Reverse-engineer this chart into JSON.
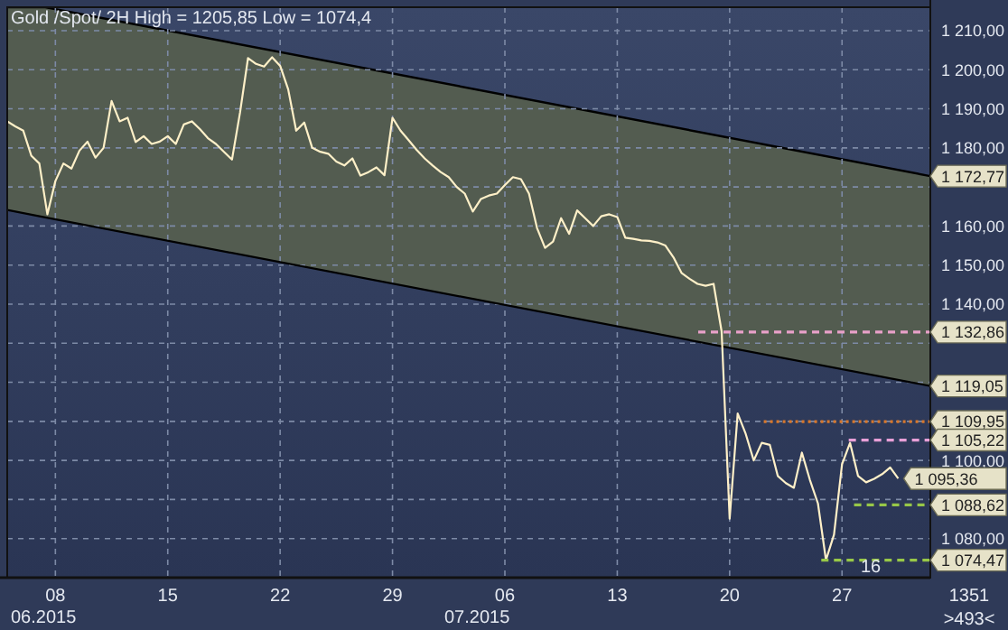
{
  "chart_data": {
    "type": "line",
    "title": "Gold /Spot/ 2H High = 1205,85 Low = 1074,4",
    "xlim": [
      "2015-06-05T00:00",
      "2015-08-01T12:00"
    ],
    "xticks": [
      {
        "value": "2015-06-08",
        "label": "08"
      },
      {
        "value": "2015-06-15",
        "label": "15"
      },
      {
        "value": "2015-06-22",
        "label": "22"
      },
      {
        "value": "2015-06-29",
        "label": "29"
      },
      {
        "value": "2015-07-06",
        "label": "06"
      },
      {
        "value": "2015-07-13",
        "label": "13"
      },
      {
        "value": "2015-07-20",
        "label": "20"
      },
      {
        "value": "2015-07-27",
        "label": "27"
      }
    ],
    "ylim": [
      1070,
      1216
    ],
    "yticks": [
      {
        "value": 1080,
        "label": "1 080,00"
      },
      {
        "value": 1090,
        "label": null
      },
      {
        "value": 1100,
        "label": "1 100,00"
      },
      {
        "value": 1110,
        "label": null
      },
      {
        "value": 1120,
        "label": null
      },
      {
        "value": 1130,
        "label": null
      },
      {
        "value": 1140,
        "label": "1 140,00"
      },
      {
        "value": 1150,
        "label": "1 150,00"
      },
      {
        "value": 1160,
        "label": "1 160,00"
      },
      {
        "value": 1170,
        "label": null
      },
      {
        "value": 1180,
        "label": "1 180,00"
      },
      {
        "value": 1190,
        "label": "1 190,00"
      },
      {
        "value": 1200,
        "label": "1 200,00"
      },
      {
        "value": 1210,
        "label": "1 210,00"
      }
    ],
    "grid": true,
    "series": [
      {
        "type": "area",
        "color": "#535c50",
        "x": [
          "2015-06-05T00:00",
          "2015-06-07T09:00",
          "2015-08-01T12:00"
        ],
        "values": [
          1216,
          1216,
          1172.77
        ],
        "value_labels": [
          null,
          null,
          "1 172,77"
        ]
      },
      {
        "type": "line",
        "color": "#000000",
        "x": [
          "2015-06-05T00:00",
          "2015-06-07T09:00",
          "2015-08-01T12:00"
        ],
        "values": [
          1164.1,
          1162.2,
          1119.05
        ],
        "value_labels": [
          null,
          null,
          "1 119,05"
        ]
      },
      {
        "color": "#fff0c8",
        "x": [
          "2015-06-05T00:00",
          "2015-06-05T12:00",
          "2015-06-06T00:00",
          "2015-06-06T12:00",
          "2015-06-07T00:00",
          "2015-06-07T12:00",
          "2015-06-08T00:00",
          "2015-06-08T12:00",
          "2015-06-09T00:00",
          "2015-06-09T12:00",
          "2015-06-10T00:00",
          "2015-06-10T12:00",
          "2015-06-11T00:00",
          "2015-06-11T12:00",
          "2015-06-12T00:00",
          "2015-06-12T12:00",
          "2015-06-13T00:00",
          "2015-06-13T12:00",
          "2015-06-14T00:00",
          "2015-06-14T12:00",
          "2015-06-15T00:00",
          "2015-06-15T12:00",
          "2015-06-16T00:00",
          "2015-06-16T12:00",
          "2015-06-17T00:00",
          "2015-06-17T12:00",
          "2015-06-18T00:00",
          "2015-06-18T12:00",
          "2015-06-19T00:00",
          "2015-06-19T12:00",
          "2015-06-20T00:00",
          "2015-06-20T12:00",
          "2015-06-21T00:00",
          "2015-06-21T12:00",
          "2015-06-22T00:00",
          "2015-06-22T12:00",
          "2015-06-23T00:00",
          "2015-06-23T12:00",
          "2015-06-24T00:00",
          "2015-06-24T12:00",
          "2015-06-25T00:00",
          "2015-06-25T12:00",
          "2015-06-26T00:00",
          "2015-06-26T12:00",
          "2015-06-27T00:00",
          "2015-06-27T12:00",
          "2015-06-28T00:00",
          "2015-06-28T12:00",
          "2015-06-29T00:00",
          "2015-06-29T12:00",
          "2015-06-30T00:00",
          "2015-06-30T12:00",
          "2015-07-01T00:00",
          "2015-07-01T12:00",
          "2015-07-02T00:00",
          "2015-07-02T12:00",
          "2015-07-03T00:00",
          "2015-07-03T12:00",
          "2015-07-04T00:00",
          "2015-07-04T12:00",
          "2015-07-05T00:00",
          "2015-07-05T12:00",
          "2015-07-06T00:00",
          "2015-07-06T12:00",
          "2015-07-07T00:00",
          "2015-07-07T12:00",
          "2015-07-08T00:00",
          "2015-07-08T12:00",
          "2015-07-09T00:00",
          "2015-07-09T12:00",
          "2015-07-10T00:00",
          "2015-07-10T12:00",
          "2015-07-11T00:00",
          "2015-07-11T12:00",
          "2015-07-12T00:00",
          "2015-07-12T12:00",
          "2015-07-13T00:00",
          "2015-07-13T12:00",
          "2015-07-14T00:00",
          "2015-07-14T12:00",
          "2015-07-15T00:00",
          "2015-07-15T12:00",
          "2015-07-16T00:00",
          "2015-07-16T12:00",
          "2015-07-17T00:00",
          "2015-07-17T12:00",
          "2015-07-18T00:00",
          "2015-07-18T12:00",
          "2015-07-19T00:00",
          "2015-07-19T12:00",
          "2015-07-20T00:00",
          "2015-07-20T12:00",
          "2015-07-21T00:00",
          "2015-07-21T12:00",
          "2015-07-22T00:00",
          "2015-07-22T12:00",
          "2015-07-23T00:00",
          "2015-07-23T12:00",
          "2015-07-24T00:00",
          "2015-07-24T12:00",
          "2015-07-25T00:00",
          "2015-07-25T12:00",
          "2015-07-26T00:00",
          "2015-07-26T12:00",
          "2015-07-27T00:00",
          "2015-07-27T12:00",
          "2015-07-28T00:00",
          "2015-07-28T12:00",
          "2015-07-29T00:00",
          "2015-07-29T12:00",
          "2015-07-30T00:00",
          "2015-07-30T12:00"
        ],
        "values": [
          1186.8,
          1185.5,
          1184.4,
          1178,
          1176,
          1163,
          1171.5,
          1176,
          1174.7,
          1179.3,
          1181.6,
          1177.5,
          1180,
          1192,
          1186.8,
          1187.7,
          1181.5,
          1183,
          1181,
          1181.6,
          1183,
          1181,
          1186,
          1186.8,
          1184.8,
          1182.5,
          1181,
          1179,
          1177,
          1189,
          1203,
          1201.5,
          1200.8,
          1203.2,
          1201,
          1195,
          1184.4,
          1186.5,
          1180,
          1179,
          1178.5,
          1176.5,
          1175.5,
          1177.3,
          1172.9,
          1173.8,
          1175,
          1173,
          1187.7,
          1184.4,
          1182,
          1179.5,
          1177.3,
          1175.5,
          1173.8,
          1172.5,
          1170,
          1168.3,
          1163.7,
          1166.9,
          1167.8,
          1168.3,
          1170.5,
          1172.5,
          1172,
          1168.3,
          1159.5,
          1154.4,
          1156,
          1162,
          1158,
          1164,
          1162,
          1160,
          1162.5,
          1163,
          1162.3,
          1157,
          1156.7,
          1156.3,
          1156.2,
          1155.8,
          1155,
          1152,
          1148,
          1146.5,
          1145.2,
          1144.7,
          1145.2,
          1133,
          1085.1,
          1112,
          1106.8,
          1100,
          1104.5,
          1104,
          1096,
          1094.2,
          1093,
          1102,
          1095,
          1089,
          1074.5,
          1081,
          1099,
          1104.5,
          1096,
          1094.4,
          1095.3,
          1096.5,
          1098.2,
          1095.36
        ],
        "value_labels": [
          null,
          null,
          null,
          null,
          null,
          null,
          null,
          null,
          null,
          null,
          null,
          null,
          null,
          null,
          null,
          null,
          null,
          null,
          null,
          null,
          null,
          null,
          null,
          null,
          null,
          null,
          null,
          null,
          null,
          null,
          null,
          null,
          null,
          null,
          null,
          null,
          null,
          null,
          null,
          null,
          null,
          null,
          null,
          null,
          null,
          null,
          null,
          null,
          null,
          null,
          null,
          null,
          null,
          null,
          null,
          null,
          null,
          null,
          null,
          null,
          null,
          null,
          null,
          null,
          null,
          null,
          null,
          null,
          null,
          null,
          null,
          null,
          null,
          null,
          null,
          null,
          null,
          null,
          null,
          null,
          null,
          null,
          null,
          null,
          null,
          null,
          null,
          null,
          null,
          null,
          null,
          null,
          null,
          null,
          null,
          null,
          null,
          null,
          null,
          null,
          null,
          null,
          null,
          null,
          null,
          null,
          null,
          null,
          null,
          null,
          null,
          "1 095,36"
        ]
      },
      {
        "type": "line",
        "color": "#e8a0c8",
        "line_style": "dashed",
        "x": [
          "2015-07-18T01:00",
          "2015-08-01T12:00"
        ],
        "values": [
          1132.86,
          1132.86
        ],
        "value_labels": [
          null,
          "1 132,86"
        ]
      },
      {
        "type": "line",
        "color": "#d8782c",
        "line_style": "dotted",
        "x": [
          "2015-07-22T03:00",
          "2015-08-01T12:00"
        ],
        "values": [
          1109.95,
          1109.95
        ],
        "value_labels": [
          null,
          "1 109,95"
        ]
      },
      {
        "type": "line",
        "color": "#e8a0d8",
        "line_style": "dashed",
        "x": [
          "2015-07-27T10:00",
          "2015-08-01T12:00"
        ],
        "values": [
          1105.22,
          1105.22
        ],
        "value_labels": [
          null,
          "1 105,22"
        ]
      },
      {
        "type": "line",
        "color": "#98c848",
        "line_style": "dashed",
        "x": [
          "2015-07-27T18:00",
          "2015-08-01T12:00"
        ],
        "values": [
          1088.62,
          1088.62
        ],
        "value_labels": [
          null,
          "1 088,62"
        ]
      },
      {
        "type": "line",
        "color": "#98c848",
        "line_style": "dashed",
        "x": [
          "2015-07-25T17:00",
          "2015-08-01T12:00"
        ],
        "values": [
          1074.47,
          1074.47
        ],
        "value_labels": [
          null,
          "1 074,47"
        ]
      }
    ],
    "annotations": [
      "16",
      "06.2015",
      "07.2015",
      "1351",
      ">493<"
    ]
  }
}
